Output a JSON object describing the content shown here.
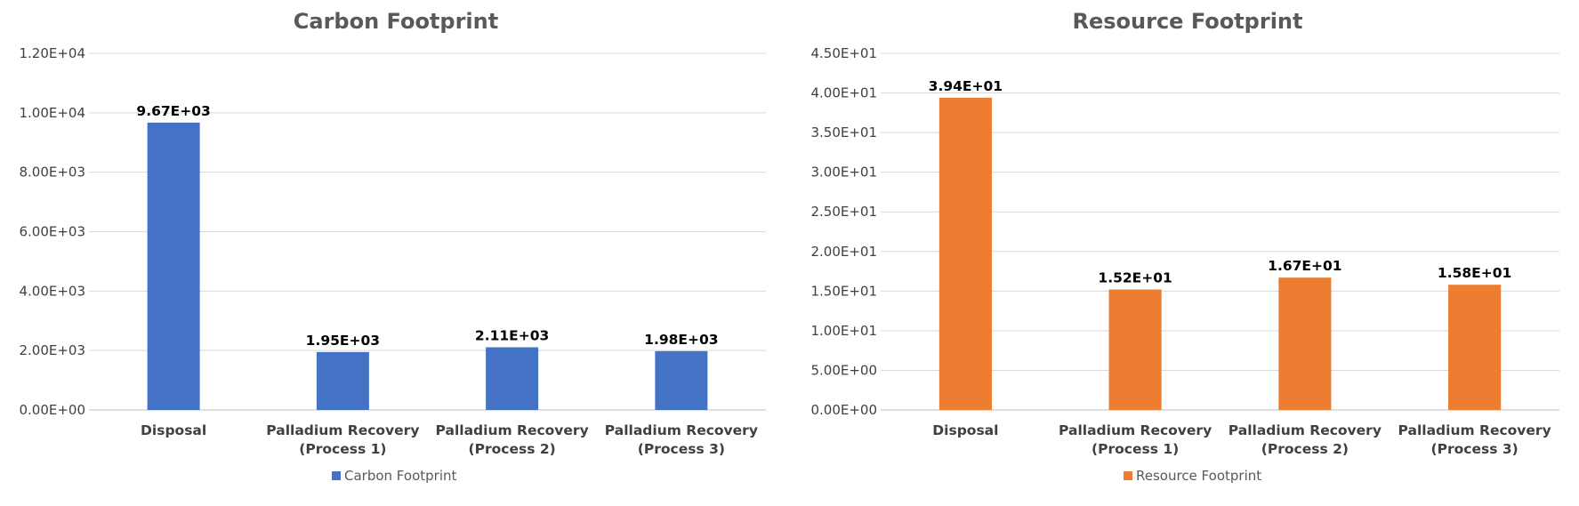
{
  "chart_data": [
    {
      "type": "bar",
      "title": "Carbon Footprint",
      "categories": [
        [
          "Disposal"
        ],
        [
          "Palladium Recovery",
          "(Process 1)"
        ],
        [
          "Palladium Recovery",
          "(Process 2)"
        ],
        [
          "Palladium Recovery",
          "(Process 3)"
        ]
      ],
      "series": [
        {
          "name": "Carbon Footprint",
          "values": [
            9670,
            1950,
            2110,
            1980
          ],
          "labels": [
            "9.67E+03",
            "1.95E+03",
            "2.11E+03",
            "1.98E+03"
          ],
          "color": "#4472c4"
        }
      ],
      "ylim": [
        0,
        12000
      ],
      "yticks": [
        0,
        2000,
        4000,
        6000,
        8000,
        10000,
        12000
      ],
      "ytick_labels": [
        "0.00E+00",
        "2.00E+03",
        "4.00E+03",
        "6.00E+03",
        "8.00E+03",
        "1.00E+04",
        "1.20E+04"
      ],
      "xlabel": "",
      "ylabel": "",
      "grid": true,
      "legend": "bottom"
    },
    {
      "type": "bar",
      "title": "Resource Footprint",
      "categories": [
        [
          "Disposal"
        ],
        [
          "Palladium Recovery",
          "(Process 1)"
        ],
        [
          "Palladium Recovery",
          "(Process 2)"
        ],
        [
          "Palladium Recovery",
          "(Process 3)"
        ]
      ],
      "series": [
        {
          "name": "Resource Footprint",
          "values": [
            39.4,
            15.2,
            16.7,
            15.8
          ],
          "labels": [
            "3.94E+01",
            "1.52E+01",
            "1.67E+01",
            "1.58E+01"
          ],
          "color": "#ed7d31"
        }
      ],
      "ylim": [
        0,
        45
      ],
      "yticks": [
        0,
        5,
        10,
        15,
        20,
        25,
        30,
        35,
        40,
        45
      ],
      "ytick_labels": [
        "0.00E+00",
        "5.00E+00",
        "1.00E+01",
        "1.50E+01",
        "2.00E+01",
        "2.50E+01",
        "3.00E+01",
        "3.50E+01",
        "4.00E+01",
        "4.50E+01"
      ],
      "xlabel": "",
      "ylabel": "",
      "grid": true,
      "legend": "bottom"
    }
  ]
}
